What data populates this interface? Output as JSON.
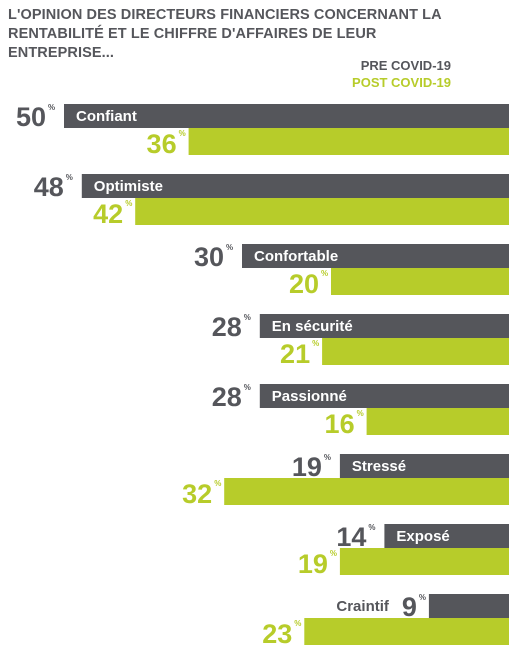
{
  "title": "L'OPINION DES DIRECTEURS FINANCIERS CONCERNANT LA RENTABILITÉ ET LE CHIFFRE D'AFFAIRES DE LEUR ENTREPRISE...",
  "legend": {
    "pre": "PRE COVID-19",
    "post": "POST COVID-19"
  },
  "colors": {
    "pre": "#55565b",
    "post": "#b7cc2a",
    "label_on_bar": "#ffffff",
    "label_off_bar": "#55565b"
  },
  "chart_data": {
    "type": "bar",
    "orientation": "horizontal",
    "unit": "%",
    "categories": [
      "Confiant",
      "Optimiste",
      "Confortable",
      "En sécurité",
      "Passionné",
      "Stressé",
      "Exposé",
      "Craintif"
    ],
    "series": [
      {
        "name": "PRE COVID-19",
        "values": [
          50,
          48,
          30,
          28,
          28,
          19,
          14,
          9
        ]
      },
      {
        "name": "POST COVID-19",
        "values": [
          36,
          42,
          20,
          21,
          16,
          32,
          19,
          23
        ]
      }
    ],
    "bars_anchored": "right",
    "legend_position": "top-right",
    "grid": false
  }
}
